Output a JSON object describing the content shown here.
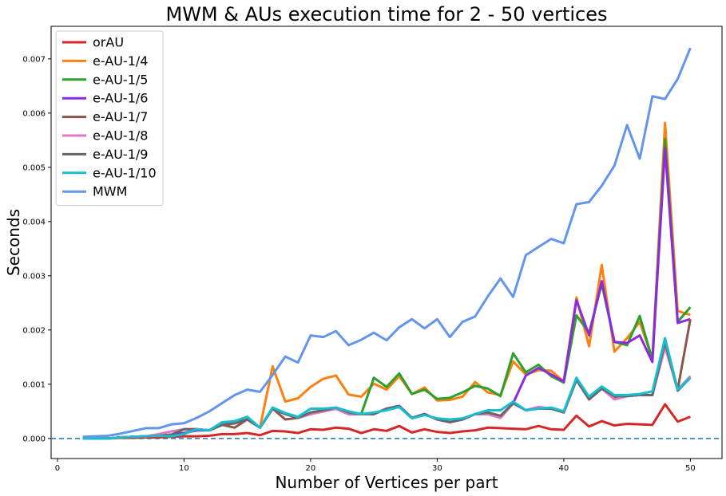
{
  "chart_data": {
    "type": "line",
    "title": "MWM & AUs execution time for 2 - 50 vertices",
    "xlabel": "Number of Vertices per part",
    "ylabel": "Seconds",
    "xlim": [
      -0.5,
      52.5
    ],
    "ylim": [
      -0.00037,
      0.0076
    ],
    "xticks": [
      0,
      10,
      20,
      30,
      40,
      50
    ],
    "yticks": [
      0.0,
      0.001,
      0.002,
      0.003,
      0.004,
      0.005,
      0.006,
      0.007
    ],
    "ytick_labels": [
      "0.000",
      "0.001",
      "0.002",
      "0.003",
      "0.004",
      "0.005",
      "0.006",
      "0.007"
    ],
    "grid": false,
    "legend_position": "top-left",
    "reference_line": {
      "y": 0,
      "style": "dashed",
      "color": "#1f77b4"
    },
    "x": [
      2,
      3,
      4,
      5,
      6,
      7,
      8,
      9,
      10,
      11,
      12,
      13,
      14,
      15,
      16,
      17,
      18,
      19,
      20,
      21,
      22,
      23,
      24,
      25,
      26,
      27,
      28,
      29,
      30,
      31,
      32,
      33,
      34,
      35,
      36,
      37,
      38,
      39,
      40,
      41,
      42,
      43,
      44,
      45,
      46,
      47,
      48,
      49,
      50
    ],
    "series": [
      {
        "name": "orAU",
        "color": "#d62728",
        "values": [
          0.0,
          0.0,
          0.0,
          1e-05,
          1e-05,
          2e-05,
          2e-05,
          3e-05,
          4e-05,
          4e-05,
          5e-05,
          8e-05,
          8e-05,
          0.0001,
          6e-05,
          0.00014,
          0.00013,
          0.0001,
          0.00017,
          0.00016,
          0.0002,
          0.00018,
          0.0001,
          0.00017,
          0.00014,
          0.00023,
          0.00011,
          0.00017,
          0.00012,
          0.0001,
          0.00013,
          0.00015,
          0.0002,
          0.00019,
          0.00018,
          0.00017,
          0.00023,
          0.00017,
          0.00016,
          0.00042,
          0.00022,
          0.00032,
          0.00024,
          0.00027,
          0.00026,
          0.00025,
          0.00063,
          0.00031,
          0.0004
        ]
      },
      {
        "name": "e-AU-1/4",
        "color": "#ff7f0e",
        "values": [
          0.0,
          0.0,
          0.0,
          2e-05,
          3e-05,
          4e-05,
          5e-05,
          7e-05,
          0.0001,
          0.00015,
          0.00015,
          0.00025,
          0.00028,
          0.00035,
          0.0002,
          0.00133,
          0.00068,
          0.00074,
          0.00095,
          0.0011,
          0.00116,
          0.00081,
          0.00077,
          0.00101,
          0.0009,
          0.00115,
          0.00082,
          0.00094,
          0.0007,
          0.00071,
          0.00077,
          0.00104,
          0.00085,
          0.0008,
          0.00142,
          0.00118,
          0.00126,
          0.00125,
          0.00105,
          0.0026,
          0.0017,
          0.0032,
          0.0016,
          0.00185,
          0.00215,
          0.00147,
          0.00582,
          0.00235,
          0.00228
        ]
      },
      {
        "name": "e-AU-1/5",
        "color": "#2ca02c",
        "values": [
          0.0,
          0.0,
          0.0,
          2e-05,
          3e-05,
          4e-05,
          5e-05,
          7e-05,
          0.0001,
          0.00015,
          0.00015,
          0.00025,
          0.00028,
          0.00035,
          0.0002,
          0.00055,
          0.00045,
          0.00038,
          0.00045,
          0.0005,
          0.00055,
          0.00045,
          0.00045,
          0.00112,
          0.00095,
          0.0012,
          0.00082,
          0.0009,
          0.00073,
          0.00075,
          0.00085,
          0.00097,
          0.00092,
          0.00078,
          0.00157,
          0.00122,
          0.00136,
          0.00115,
          0.00103,
          0.00227,
          0.00195,
          0.00285,
          0.00178,
          0.00172,
          0.00226,
          0.00145,
          0.00552,
          0.00215,
          0.00242
        ]
      },
      {
        "name": "e-AU-1/6",
        "color": "#8a2be2",
        "values": [
          0.0,
          0.0,
          0.0,
          2e-05,
          3e-05,
          4e-05,
          5e-05,
          7e-05,
          0.0001,
          0.00015,
          0.00015,
          0.00025,
          0.00028,
          0.00035,
          0.0002,
          0.00055,
          0.00045,
          0.00038,
          0.00045,
          0.0005,
          0.00055,
          0.00045,
          0.00045,
          0.00045,
          0.00055,
          0.0006,
          0.00038,
          0.00045,
          0.00035,
          0.0003,
          0.00035,
          0.00045,
          0.00045,
          0.00038,
          0.00065,
          0.00116,
          0.0013,
          0.00118,
          0.00105,
          0.00255,
          0.0019,
          0.0029,
          0.00178,
          0.00176,
          0.0019,
          0.00141,
          0.00535,
          0.00213,
          0.0022
        ]
      },
      {
        "name": "e-AU-1/7",
        "color": "#8c564b",
        "values": [
          0.0,
          0.0,
          0.0,
          2e-05,
          3e-05,
          4e-05,
          5e-05,
          7e-05,
          0.00017,
          0.00017,
          0.00015,
          0.00025,
          0.0002,
          0.00035,
          0.0002,
          0.00055,
          0.00035,
          0.00038,
          0.00045,
          0.0005,
          0.00055,
          0.00045,
          0.00045,
          0.00045,
          0.00055,
          0.0006,
          0.00038,
          0.00045,
          0.00035,
          0.0003,
          0.00035,
          0.00045,
          0.00045,
          0.00038,
          0.00065,
          0.00052,
          0.00058,
          0.00055,
          0.00048,
          0.00108,
          0.00072,
          0.00092,
          0.00075,
          0.00078,
          0.0008,
          0.0008,
          0.00178,
          0.0009,
          0.0022
        ]
      },
      {
        "name": "e-AU-1/8",
        "color": "#e377c2",
        "values": [
          0.0,
          0.0,
          0.0,
          2e-05,
          3e-05,
          4e-05,
          8e-05,
          0.00013,
          0.00017,
          0.00017,
          0.00015,
          0.00028,
          0.00028,
          0.00035,
          0.0002,
          0.00055,
          0.00045,
          0.00038,
          0.00045,
          0.0005,
          0.00055,
          0.00045,
          0.00045,
          0.00045,
          0.00055,
          0.0006,
          0.00038,
          0.00045,
          0.00035,
          0.0003,
          0.00035,
          0.00045,
          0.00045,
          0.00038,
          0.00065,
          0.00052,
          0.00058,
          0.00055,
          0.00048,
          0.00108,
          0.00072,
          0.00092,
          0.00072,
          0.00078,
          0.0008,
          0.0008,
          0.00168,
          0.0009,
          0.00115
        ]
      },
      {
        "name": "e-AU-1/9",
        "color": "#666666",
        "values": [
          0.0,
          0.0,
          0.0,
          2e-05,
          3e-05,
          4e-05,
          5e-05,
          7e-05,
          0.00017,
          0.00017,
          0.00015,
          0.00025,
          0.00028,
          0.00035,
          0.0002,
          0.00055,
          0.00045,
          0.00038,
          0.00048,
          0.00052,
          0.00057,
          0.00048,
          0.00045,
          0.00045,
          0.00055,
          0.0006,
          0.00038,
          0.00045,
          0.00035,
          0.0003,
          0.00035,
          0.00045,
          0.00048,
          0.00042,
          0.00065,
          0.00052,
          0.00055,
          0.00055,
          0.00048,
          0.00108,
          0.00072,
          0.00092,
          0.00078,
          0.00078,
          0.0008,
          0.0008,
          0.00178,
          0.00088,
          0.00112
        ]
      },
      {
        "name": "e-AU-1/10",
        "color": "#17becf",
        "values": [
          0.0,
          0.0,
          0.0,
          2e-05,
          3e-05,
          4e-05,
          5e-05,
          4e-05,
          8e-05,
          0.00017,
          0.00015,
          0.0003,
          0.00032,
          0.0004,
          0.0002,
          0.00057,
          0.00047,
          0.0004,
          0.00055,
          0.00055,
          0.00057,
          0.0005,
          0.00045,
          0.00048,
          0.00052,
          0.00058,
          0.00037,
          0.00043,
          0.00037,
          0.00035,
          0.00037,
          0.00045,
          0.00052,
          0.00052,
          0.00068,
          0.00052,
          0.00055,
          0.00057,
          0.0005,
          0.00112,
          0.00077,
          0.00096,
          0.0008,
          0.0008,
          0.00082,
          0.00087,
          0.00185,
          0.0009,
          0.00112
        ]
      },
      {
        "name": "MWM",
        "color": "#6495ed",
        "values": [
          3e-05,
          4e-05,
          5e-05,
          9e-05,
          0.00014,
          0.00019,
          0.00019,
          0.00026,
          0.00028,
          0.00038,
          0.0005,
          0.00065,
          0.0008,
          0.0009,
          0.00086,
          0.00117,
          0.00151,
          0.0014,
          0.0019,
          0.00187,
          0.00198,
          0.00172,
          0.00182,
          0.00195,
          0.00181,
          0.00205,
          0.0022,
          0.00203,
          0.0022,
          0.00187,
          0.00215,
          0.00225,
          0.00262,
          0.00295,
          0.00261,
          0.00338,
          0.00353,
          0.00368,
          0.0036,
          0.00432,
          0.00436,
          0.00466,
          0.00503,
          0.00578,
          0.00516,
          0.00631,
          0.00626,
          0.00663,
          0.0072
        ]
      }
    ]
  }
}
